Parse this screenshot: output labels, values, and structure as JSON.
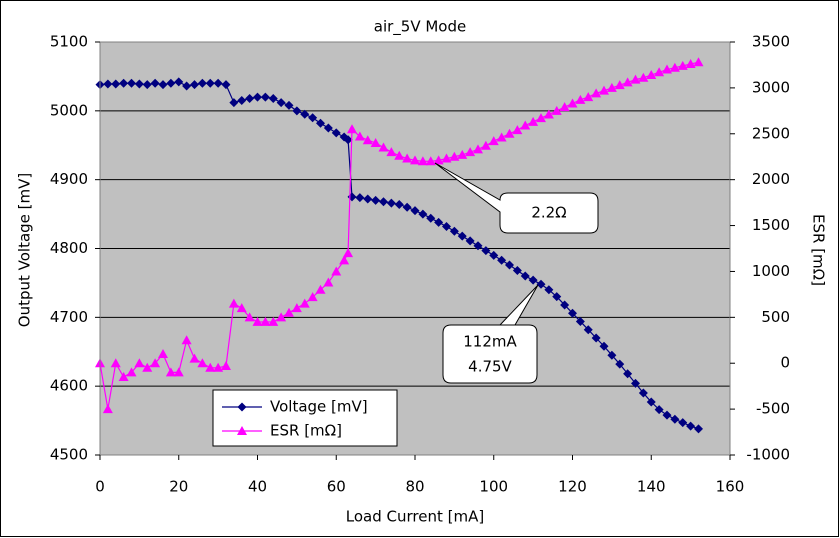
{
  "chart_data": {
    "type": "line",
    "title": "air_5V Mode",
    "x_label": "Load Current [mA]",
    "y_label": "Output Voltage [mV]",
    "y2_label": "ESR [mΩ]",
    "x": [
      0,
      2,
      4,
      6,
      8,
      10,
      12,
      14,
      16,
      18,
      20,
      22,
      24,
      26,
      28,
      30,
      32,
      34,
      36,
      38,
      40,
      42,
      44,
      46,
      48,
      50,
      52,
      54,
      56,
      58,
      60,
      62,
      63,
      64,
      66,
      68,
      70,
      72,
      74,
      76,
      78,
      80,
      82,
      84,
      86,
      88,
      90,
      92,
      94,
      96,
      98,
      100,
      102,
      104,
      106,
      108,
      110,
      112,
      114,
      116,
      118,
      120,
      122,
      124,
      126,
      128,
      130,
      132,
      134,
      136,
      138,
      140,
      142,
      144,
      146,
      148,
      150,
      152
    ],
    "series": [
      {
        "name": "Voltage [mV]",
        "color": "#000080",
        "marker": "diamond",
        "values": [
          5038,
          5039,
          5039,
          5040,
          5040,
          5039,
          5038,
          5040,
          5038,
          5040,
          5042,
          5036,
          5038,
          5040,
          5040,
          5040,
          5038,
          5012,
          5015,
          5018,
          5020,
          5020,
          5018,
          5012,
          5008,
          5000,
          4995,
          4990,
          4982,
          4975,
          4968,
          4962,
          4958,
          4875,
          4874,
          4872,
          4870,
          4868,
          4866,
          4864,
          4860,
          4855,
          4850,
          4844,
          4838,
          4832,
          4825,
          4818,
          4811,
          4804,
          4797,
          4790,
          4783,
          4776,
          4768,
          4760,
          4754,
          4748,
          4740,
          4730,
          4718,
          4706,
          4694,
          4682,
          4670,
          4658,
          4645,
          4632,
          4618,
          4604,
          4590,
          4577,
          4566,
          4558,
          4552,
          4547,
          4542,
          4538
        ]
      },
      {
        "name": "ESR [mΩ]",
        "color": "#ff00ff",
        "marker": "triangle",
        "axis": "y2",
        "values": [
          0,
          -500,
          0,
          -150,
          -100,
          0,
          -50,
          0,
          100,
          -100,
          -100,
          250,
          50,
          0,
          -50,
          -50,
          -30,
          650,
          600,
          500,
          450,
          450,
          450,
          500,
          550,
          600,
          650,
          720,
          800,
          880,
          1000,
          1120,
          1200,
          2550,
          2470,
          2430,
          2400,
          2350,
          2300,
          2260,
          2230,
          2210,
          2200,
          2200,
          2210,
          2230,
          2250,
          2270,
          2300,
          2330,
          2370,
          2420,
          2460,
          2500,
          2540,
          2590,
          2630,
          2670,
          2710,
          2750,
          2790,
          2830,
          2870,
          2900,
          2940,
          2970,
          3000,
          3030,
          3060,
          3090,
          3110,
          3140,
          3170,
          3200,
          3220,
          3240,
          3260,
          3280
        ]
      }
    ],
    "xlim": [
      0,
      160
    ],
    "xticks": [
      0,
      20,
      40,
      60,
      80,
      100,
      120,
      140,
      160
    ],
    "ylim": [
      4500,
      5100
    ],
    "yticks": [
      4500,
      4600,
      4700,
      4800,
      4900,
      5000,
      5100
    ],
    "y2lim": [
      -1000,
      3500
    ],
    "y2ticks": [
      -1000,
      -500,
      0,
      500,
      1000,
      1500,
      2000,
      2500,
      3000,
      3500
    ],
    "grid": true,
    "plot_background": "#c0c0c0",
    "annotations": [
      {
        "lines": [
          "2.2Ω"
        ]
      },
      {
        "lines": [
          "112mA",
          "4.75V"
        ]
      }
    ]
  }
}
